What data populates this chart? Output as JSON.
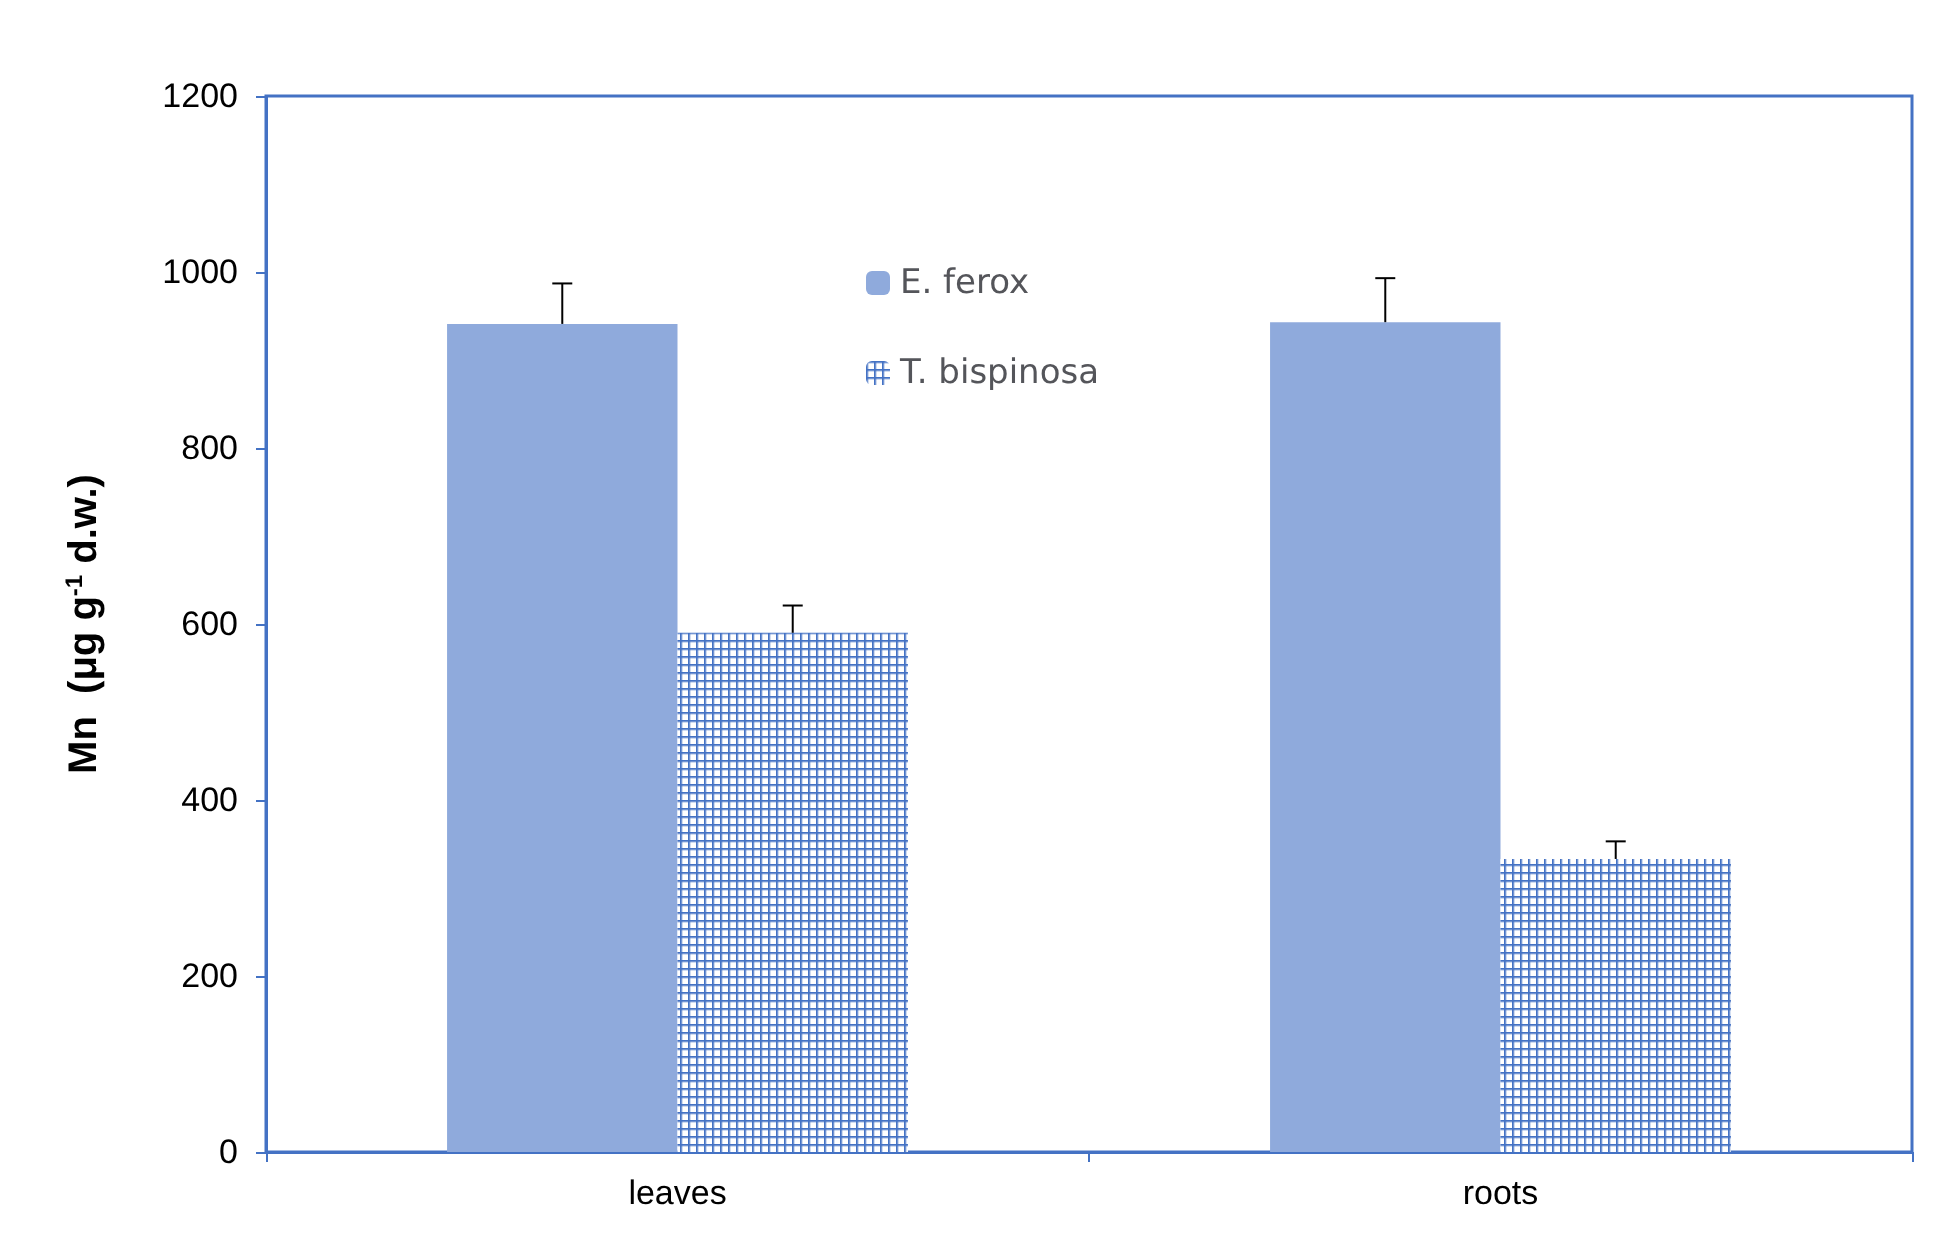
{
  "chart_data": {
    "type": "bar",
    "ylabel": "Mn  (μg g$^{-1}$ d.w.)",
    "categories": [
      "leaves",
      "roots"
    ],
    "series": [
      {
        "name": "E. ferox",
        "color": "#8faadc",
        "values": [
          941,
          943
        ],
        "errors": [
          46,
          50
        ]
      },
      {
        "name": "T. bispinosa",
        "color": "#4472c4",
        "values": [
          590,
          333
        ],
        "errors": [
          31,
          20
        ]
      }
    ],
    "ylim": [
      0,
      1200
    ],
    "yticks": [
      0,
      200,
      400,
      600,
      800,
      1000,
      1200
    ],
    "grid": false,
    "legend": "top"
  }
}
